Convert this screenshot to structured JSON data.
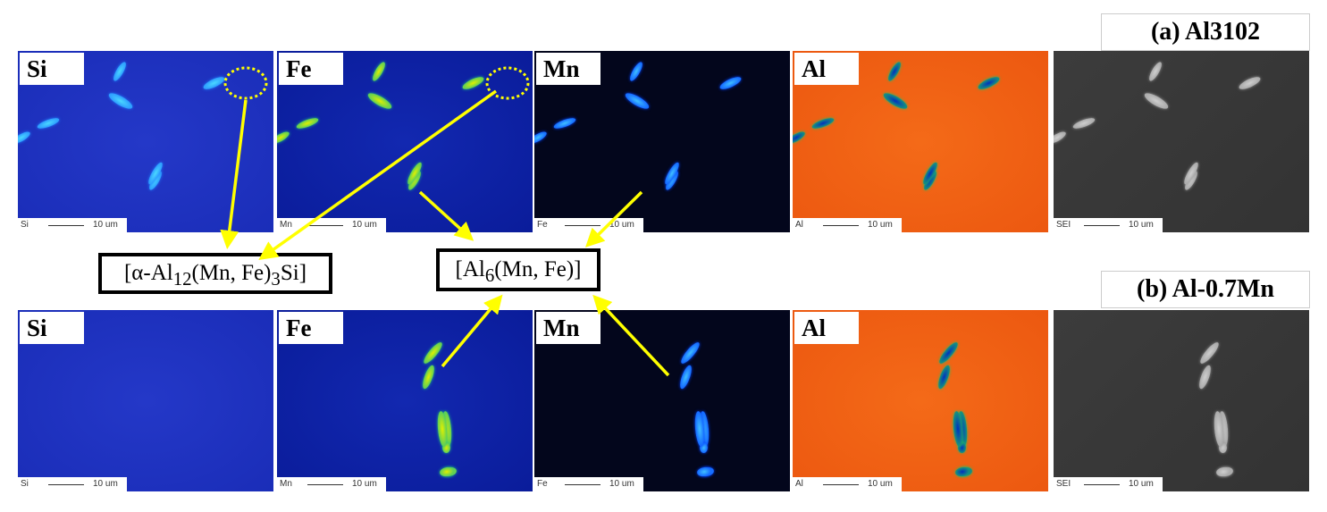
{
  "rows": [
    {
      "title": "(a) Al3102",
      "panels": [
        {
          "element": "Si",
          "scale_element": "Si",
          "scale": "10 um"
        },
        {
          "element": "Fe",
          "scale_element": "Mn",
          "scale": "10 um"
        },
        {
          "element": "Mn",
          "scale_element": "Fe",
          "scale": "10 um"
        },
        {
          "element": "Al",
          "scale_element": "Al",
          "scale": "10 um"
        },
        {
          "element": "",
          "scale_element": "SEI",
          "scale": "10 um"
        }
      ]
    },
    {
      "title": "(b) Al-0.7Mn",
      "panels": [
        {
          "element": "Si",
          "scale_element": "Si",
          "scale": "10 um"
        },
        {
          "element": "Fe",
          "scale_element": "Mn",
          "scale": "10 um"
        },
        {
          "element": "Mn",
          "scale_element": "Fe",
          "scale": "10 um"
        },
        {
          "element": "Al",
          "scale_element": "Al",
          "scale": "10 um"
        },
        {
          "element": "",
          "scale_element": "SEI",
          "scale": "10 um"
        }
      ]
    }
  ],
  "phases": {
    "alpha": {
      "prefix": "[α-Al",
      "sub1": "12",
      "mid": "(Mn, Fe)",
      "sub2": "3",
      "suffix": "Si]"
    },
    "al6": {
      "prefix": "[Al",
      "sub1": "6",
      "suffix": "(Mn, Fe)]"
    }
  },
  "colors": {
    "arrow": "#ffff00",
    "si_map": "#1a2db8",
    "fe_map": "#0a1c9a",
    "mn_map": "#03061c",
    "al_map": "#ec5810",
    "sei": "#363636"
  }
}
